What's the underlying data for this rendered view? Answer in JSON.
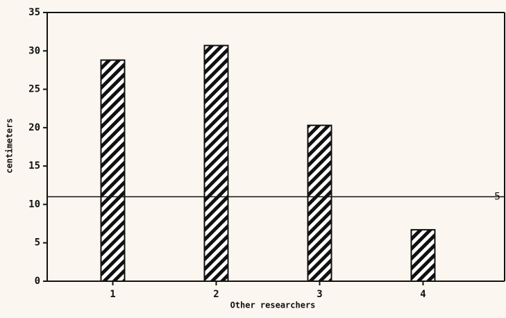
{
  "chart_data": {
    "type": "bar",
    "categories": [
      "1",
      "2",
      "3",
      "4"
    ],
    "values": [
      28.8,
      30.7,
      20.3,
      6.7
    ],
    "xlabel": "Other researchers",
    "ylabel": "centimeters",
    "ylim": [
      0,
      35
    ],
    "yticks": [
      0,
      5,
      10,
      15,
      20,
      25,
      30,
      35
    ],
    "color": "#111111",
    "reference_line": {
      "value": 11,
      "label": "5"
    }
  }
}
